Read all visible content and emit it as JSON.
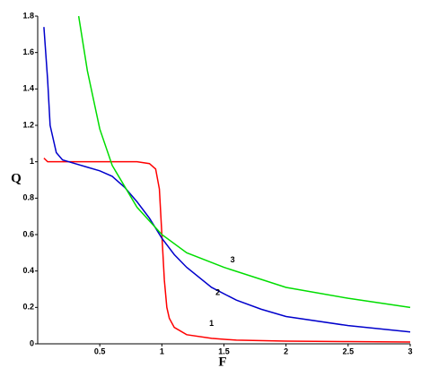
{
  "chart_data": {
    "type": "line",
    "xlabel": "F",
    "ylabel": "Q",
    "xlim": [
      0,
      3
    ],
    "ylim": [
      0,
      1.8
    ],
    "xticks": [
      0.5,
      1,
      1.5,
      2,
      2.5,
      3
    ],
    "yticks": [
      0,
      0.2,
      0.4,
      0.6,
      0.8,
      1,
      1.2,
      1.4,
      1.6,
      1.8
    ],
    "grid": false,
    "series": [
      {
        "name": "1",
        "color": "#ff0000",
        "x": [
          0.05,
          0.08,
          0.2,
          0.5,
          0.8,
          0.9,
          0.95,
          0.98,
          1.0,
          1.02,
          1.04,
          1.06,
          1.1,
          1.2,
          1.4,
          1.6,
          2,
          2.5,
          3
        ],
        "values": [
          1.02,
          1,
          1,
          1,
          1,
          0.99,
          0.96,
          0.85,
          0.6,
          0.35,
          0.2,
          0.14,
          0.09,
          0.05,
          0.03,
          0.02,
          0.015,
          0.012,
          0.01
        ]
      },
      {
        "name": "2",
        "color": "#0000cc",
        "x": [
          0.05,
          0.08,
          0.1,
          0.15,
          0.2,
          0.3,
          0.4,
          0.5,
          0.6,
          0.7,
          0.8,
          0.9,
          1,
          1.1,
          1.2,
          1.4,
          1.6,
          1.8,
          2,
          2.5,
          3
        ],
        "values": [
          1.74,
          1.45,
          1.2,
          1.05,
          1.01,
          0.99,
          0.97,
          0.95,
          0.92,
          0.86,
          0.78,
          0.69,
          0.58,
          0.49,
          0.42,
          0.31,
          0.24,
          0.19,
          0.15,
          0.1,
          0.065
        ]
      },
      {
        "name": "3",
        "color": "#00dd00",
        "x": [
          0.33,
          0.4,
          0.5,
          0.6,
          0.8,
          1,
          1.2,
          1.5,
          2,
          2.5,
          3
        ],
        "values": [
          1.8,
          1.5,
          1.18,
          0.98,
          0.75,
          0.6,
          0.5,
          0.42,
          0.31,
          0.25,
          0.2
        ]
      }
    ]
  }
}
